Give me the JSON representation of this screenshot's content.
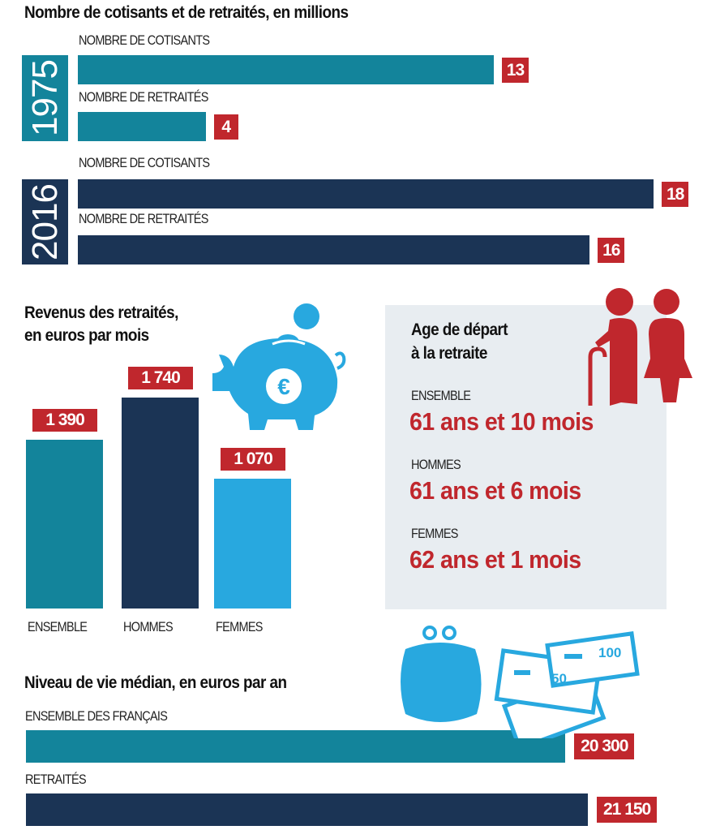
{
  "colors": {
    "teal": "#13849b",
    "navy": "#1b3455",
    "light_blue": "#28a8df",
    "red": "#c0272d",
    "box_bg": "#e8edf1"
  },
  "chart_data": [
    {
      "type": "bar",
      "orientation": "horizontal",
      "title": "Nombre de cotisants et de retraités, en millions",
      "groups": [
        {
          "year": "1975",
          "bars": [
            {
              "label": "NOMBRE DE COTISANTS",
              "value": 13,
              "value_label": "13"
            },
            {
              "label": "NOMBRE DE RETRAITÉS",
              "value": 4,
              "value_label": "4"
            }
          ]
        },
        {
          "year": "2016",
          "bars": [
            {
              "label": "NOMBRE DE COTISANTS",
              "value": 18,
              "value_label": "18"
            },
            {
              "label": "NOMBRE DE RETRAITÉS",
              "value": 16,
              "value_label": "16"
            }
          ]
        }
      ]
    },
    {
      "type": "bar",
      "orientation": "vertical",
      "title_line1": "Revenus des retraités,",
      "title_line2": "en euros par mois",
      "categories": [
        "ENSEMBLE",
        "HOMMES",
        "FEMMES"
      ],
      "values": [
        1390,
        1740,
        1070
      ],
      "value_labels": [
        "1 390",
        "1 740",
        "1 070"
      ]
    },
    {
      "type": "bar",
      "orientation": "horizontal",
      "title": "Niveau de vie médian, en euros par an",
      "categories": [
        "ENSEMBLE DES FRANÇAIS",
        "RETRAITÉS"
      ],
      "values": [
        20300,
        21150
      ],
      "value_labels": [
        "20 300",
        "21 150"
      ]
    }
  ],
  "age": {
    "title_line1": "Age de départ",
    "title_line2": "à la retraite",
    "items": [
      {
        "label": "ENSEMBLE",
        "value": "61 ans et 10 mois"
      },
      {
        "label": "HOMMES",
        "value": "61 ans et 6 mois"
      },
      {
        "label": "FEMMES",
        "value": "62 ans et 1 mois"
      }
    ]
  },
  "icons": {
    "piggy": "piggy-bank-euro-icon",
    "elderly": "elderly-couple-icon",
    "purse": "purse-icon",
    "banknotes": "banknotes-icon",
    "euro_symbol": "€",
    "note_50": "50",
    "note_100": "100"
  }
}
